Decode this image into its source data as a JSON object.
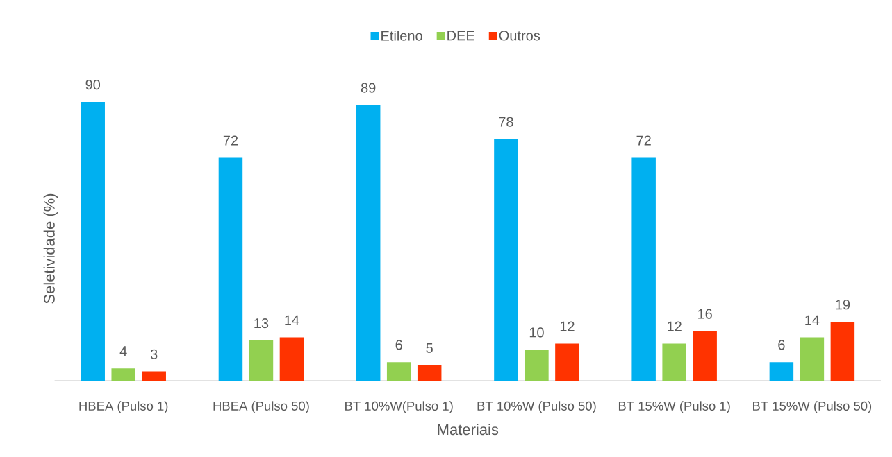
{
  "chart_data": {
    "type": "bar",
    "xlabel": "Materiais",
    "ylabel": "Seletividade (%)",
    "categories": [
      "HBEA (Pulso 1)",
      "HBEA (Pulso 50)",
      "BT 10%W(Pulso 1)",
      "BT 10%W (Pulso 50)",
      "BT 15%W (Pulso 1)",
      "BT 15%W (Pulso 50)"
    ],
    "series": [
      {
        "name": "Etileno",
        "color": "#00b0f0",
        "values": [
          90,
          72,
          89,
          78,
          72,
          6
        ]
      },
      {
        "name": "DEE",
        "color": "#92d050",
        "values": [
          4,
          13,
          6,
          10,
          12,
          14
        ]
      },
      {
        "name": "Outros",
        "color": "#ff3300",
        "values": [
          3,
          14,
          5,
          12,
          16,
          19
        ]
      }
    ],
    "data_labels": true,
    "legend": "top",
    "tick_labels": "x"
  }
}
